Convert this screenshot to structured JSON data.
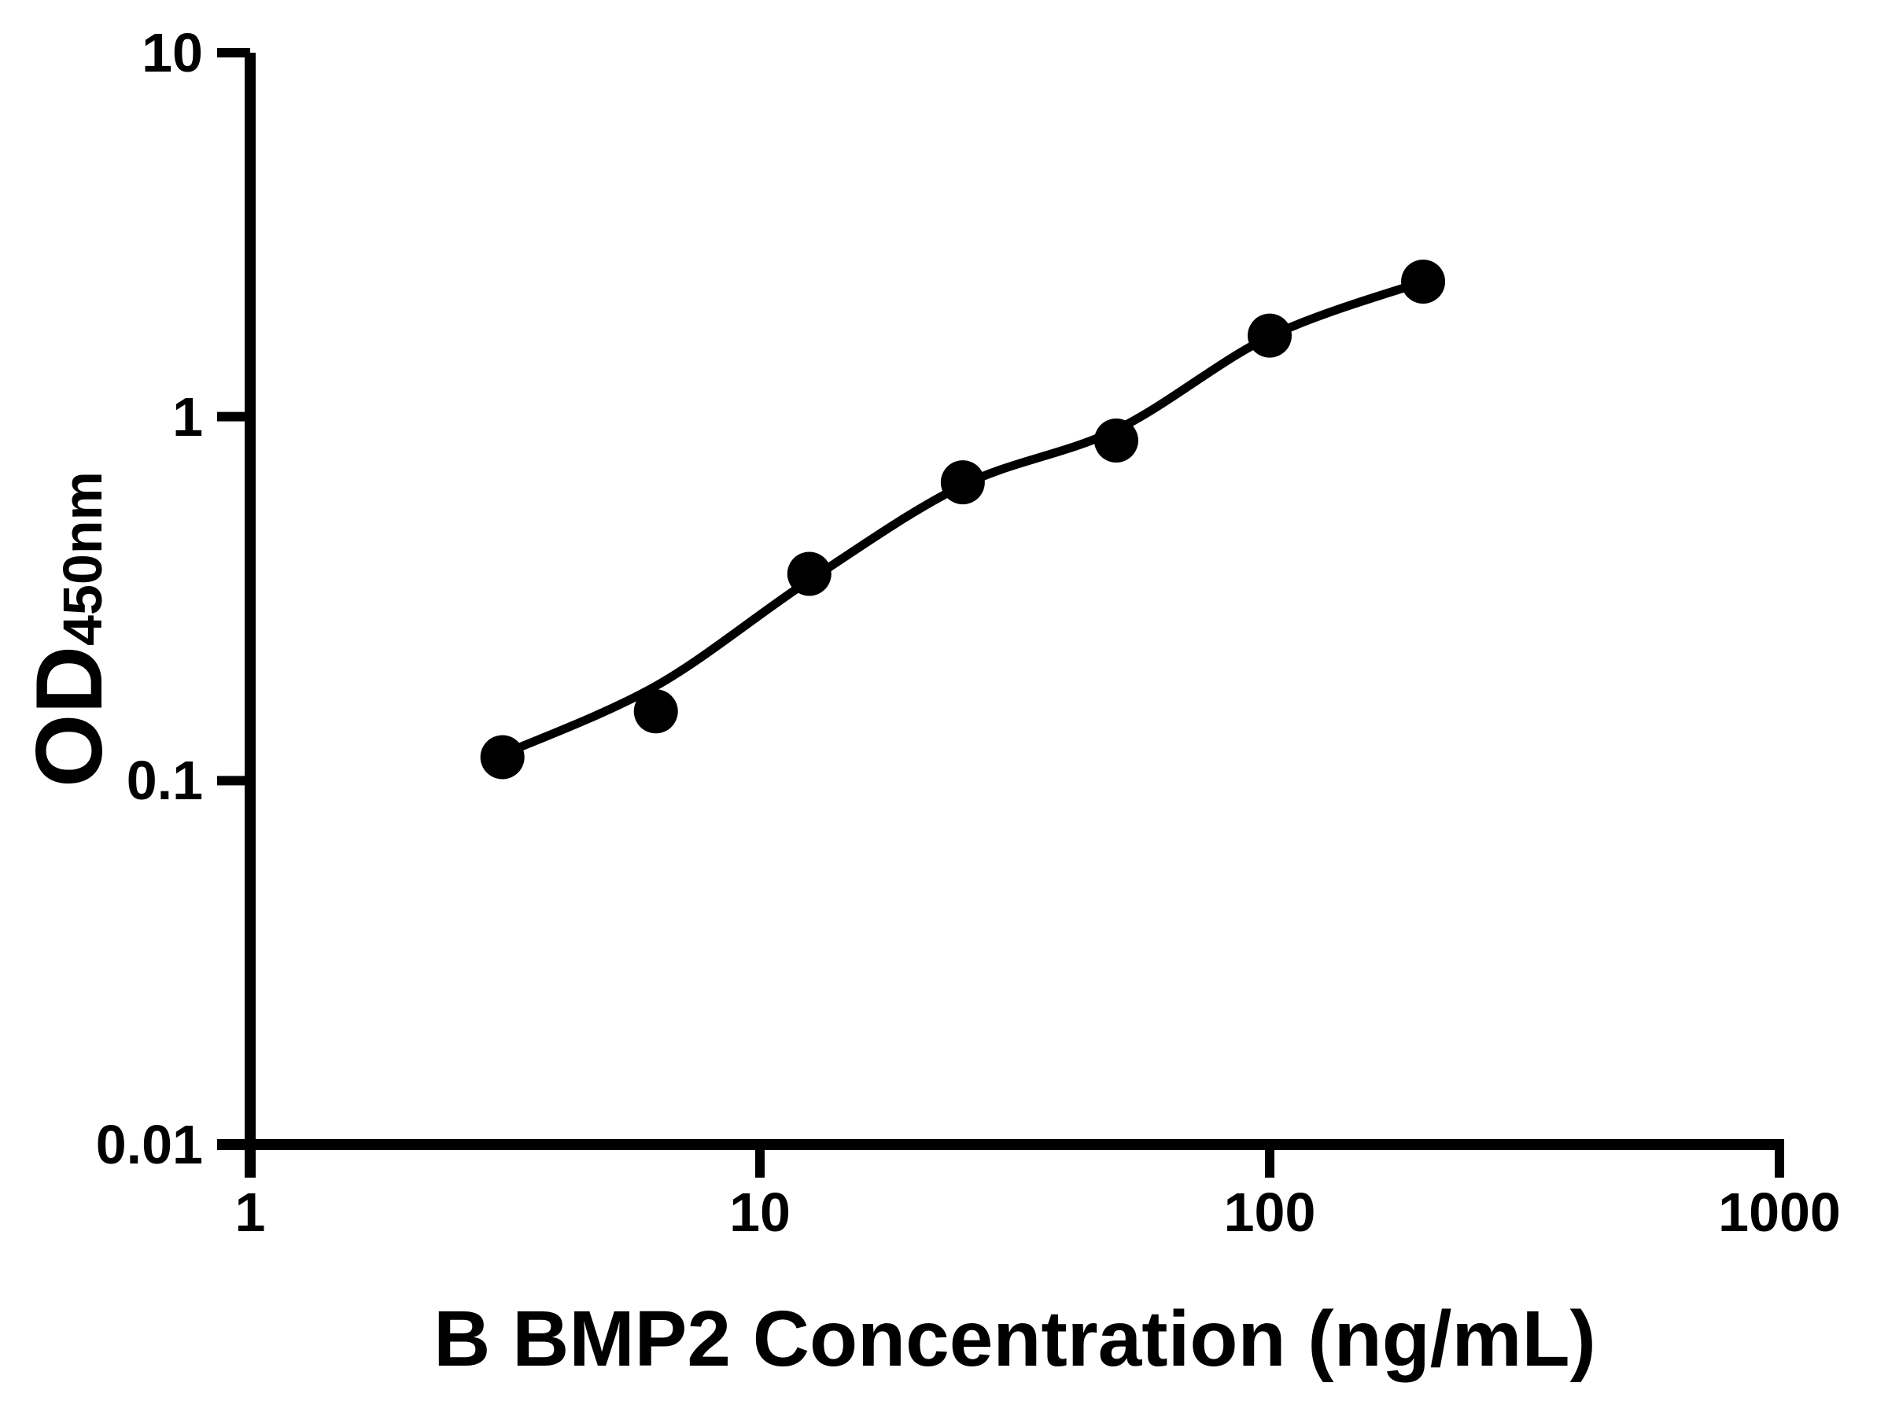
{
  "figure": {
    "background_color": "#ffffff",
    "ink_color": "#000000"
  },
  "chart_data": {
    "type": "scatter",
    "title": "",
    "xlabel": "B BMP2 Concentration (ng/mL)",
    "ylabel_main": "OD",
    "ylabel_sub": "450nm",
    "x_scale": "log",
    "y_scale": "log",
    "xlim": [
      1,
      1000
    ],
    "ylim": [
      0.01,
      10
    ],
    "x_ticks": [
      1,
      10,
      100,
      1000
    ],
    "x_tick_labels": [
      "1",
      "10",
      "100",
      "1000"
    ],
    "y_ticks": [
      10,
      1,
      0.1,
      0.01
    ],
    "y_tick_labels": [
      "10",
      "1",
      "0.1",
      "0.01"
    ],
    "grid": false,
    "legend": null,
    "series": [
      {
        "name": "standard-points",
        "kind": "scatter",
        "marker": "filled-circle",
        "color": "#000000",
        "points": [
          {
            "x": 3.125,
            "y": 0.116
          },
          {
            "x": 6.25,
            "y": 0.155
          },
          {
            "x": 12.5,
            "y": 0.37
          },
          {
            "x": 25,
            "y": 0.66
          },
          {
            "x": 50,
            "y": 0.86
          },
          {
            "x": 100,
            "y": 1.67
          },
          {
            "x": 200,
            "y": 2.35
          }
        ]
      },
      {
        "name": "fit-curve",
        "kind": "line",
        "color": "#000000",
        "points": [
          {
            "x": 3.125,
            "y": 0.118
          },
          {
            "x": 6.25,
            "y": 0.182
          },
          {
            "x": 12.5,
            "y": 0.355
          },
          {
            "x": 25,
            "y": 0.648
          },
          {
            "x": 50,
            "y": 0.92
          },
          {
            "x": 100,
            "y": 1.66
          },
          {
            "x": 200,
            "y": 2.35
          }
        ]
      }
    ]
  }
}
